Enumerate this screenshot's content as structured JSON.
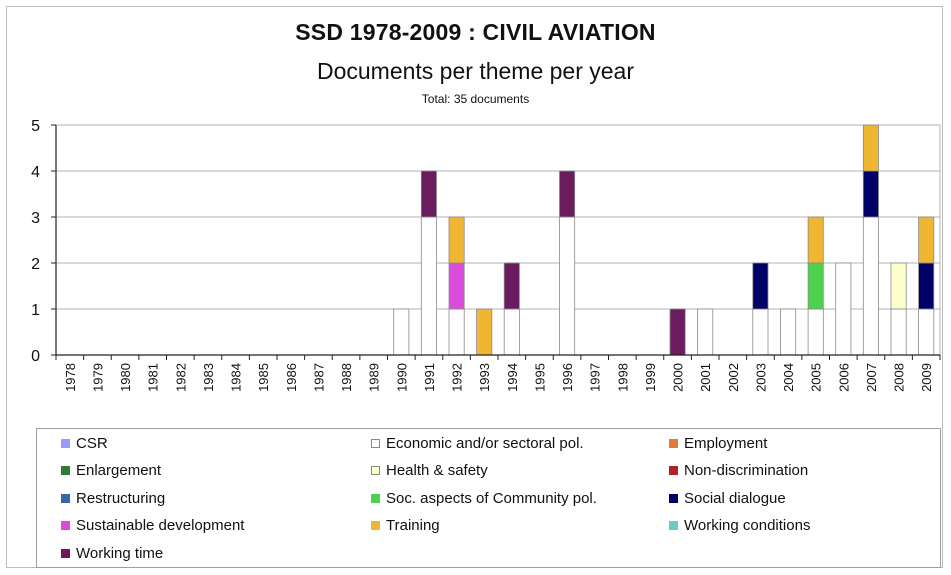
{
  "chart_data": {
    "type": "bar",
    "stacked": true,
    "title": "SSD 1978-2009 :  CIVIL AVIATION",
    "subtitle": "Documents per theme per year",
    "note": "Total: 35 documents",
    "xlabel": "",
    "ylabel": "",
    "ylim": [
      0,
      5
    ],
    "yticks": [
      "0",
      "1",
      "2",
      "3",
      "4",
      "5"
    ],
    "grid": true,
    "legend_position": "bottom",
    "categories": [
      "1978",
      "1979",
      "1980",
      "1981",
      "1982",
      "1983",
      "1984",
      "1985",
      "1986",
      "1987",
      "1988",
      "1989",
      "1990",
      "1991",
      "1992",
      "1993",
      "1994",
      "1995",
      "1996",
      "1997",
      "1998",
      "1999",
      "2000",
      "2001",
      "2002",
      "2003",
      "2004",
      "2005",
      "2006",
      "2007",
      "2008",
      "2009"
    ],
    "series": [
      {
        "name": "CSR",
        "color": "#9999ff",
        "values": [
          0,
          0,
          0,
          0,
          0,
          0,
          0,
          0,
          0,
          0,
          0,
          0,
          0,
          0,
          0,
          0,
          0,
          0,
          0,
          0,
          0,
          0,
          0,
          0,
          0,
          0,
          0,
          0,
          0,
          0,
          0,
          0
        ]
      },
      {
        "name": "Economic and/or sectoral pol.",
        "color": "#ffffff",
        "values": [
          0,
          0,
          0,
          0,
          0,
          0,
          0,
          0,
          0,
          0,
          0,
          0,
          1,
          3,
          1,
          0,
          1,
          0,
          3,
          0,
          0,
          0,
          0,
          1,
          0,
          1,
          1,
          1,
          2,
          3,
          1,
          1
        ]
      },
      {
        "name": "Employment",
        "color": "#e07b39",
        "values": [
          0,
          0,
          0,
          0,
          0,
          0,
          0,
          0,
          0,
          0,
          0,
          0,
          0,
          0,
          0,
          0,
          0,
          0,
          0,
          0,
          0,
          0,
          0,
          0,
          0,
          0,
          0,
          0,
          0,
          0,
          0,
          0
        ]
      },
      {
        "name": "Enlargement",
        "color": "#2e7d32",
        "values": [
          0,
          0,
          0,
          0,
          0,
          0,
          0,
          0,
          0,
          0,
          0,
          0,
          0,
          0,
          0,
          0,
          0,
          0,
          0,
          0,
          0,
          0,
          0,
          0,
          0,
          0,
          0,
          0,
          0,
          0,
          0,
          0
        ]
      },
      {
        "name": "Health & safety",
        "color": "#ffffcc",
        "values": [
          0,
          0,
          0,
          0,
          0,
          0,
          0,
          0,
          0,
          0,
          0,
          0,
          0,
          0,
          0,
          0,
          0,
          0,
          0,
          0,
          0,
          0,
          0,
          0,
          0,
          0,
          0,
          0,
          0,
          0,
          1,
          0
        ]
      },
      {
        "name": "Non-discrimination",
        "color": "#b22222",
        "values": [
          0,
          0,
          0,
          0,
          0,
          0,
          0,
          0,
          0,
          0,
          0,
          0,
          0,
          0,
          0,
          0,
          0,
          0,
          0,
          0,
          0,
          0,
          0,
          0,
          0,
          0,
          0,
          0,
          0,
          0,
          0,
          0
        ]
      },
      {
        "name": "Restructuring",
        "color": "#3466a8",
        "values": [
          0,
          0,
          0,
          0,
          0,
          0,
          0,
          0,
          0,
          0,
          0,
          0,
          0,
          0,
          0,
          0,
          0,
          0,
          0,
          0,
          0,
          0,
          0,
          0,
          0,
          0,
          0,
          0,
          0,
          0,
          0,
          0
        ]
      },
      {
        "name": "Soc. aspects of Community pol.",
        "color": "#4cd24c",
        "values": [
          0,
          0,
          0,
          0,
          0,
          0,
          0,
          0,
          0,
          0,
          0,
          0,
          0,
          0,
          0,
          0,
          0,
          0,
          0,
          0,
          0,
          0,
          0,
          0,
          0,
          0,
          0,
          1,
          0,
          0,
          0,
          0
        ]
      },
      {
        "name": "Social dialogue",
        "color": "#000066",
        "values": [
          0,
          0,
          0,
          0,
          0,
          0,
          0,
          0,
          0,
          0,
          0,
          0,
          0,
          0,
          0,
          0,
          0,
          0,
          0,
          0,
          0,
          0,
          0,
          0,
          0,
          1,
          0,
          0,
          0,
          1,
          0,
          1
        ]
      },
      {
        "name": "Sustainable development",
        "color": "#d94cdb",
        "values": [
          0,
          0,
          0,
          0,
          0,
          0,
          0,
          0,
          0,
          0,
          0,
          0,
          0,
          0,
          1,
          0,
          0,
          0,
          0,
          0,
          0,
          0,
          0,
          0,
          0,
          0,
          0,
          0,
          0,
          0,
          0,
          0
        ]
      },
      {
        "name": "Training",
        "color": "#f0b632",
        "values": [
          0,
          0,
          0,
          0,
          0,
          0,
          0,
          0,
          0,
          0,
          0,
          0,
          0,
          0,
          1,
          1,
          0,
          0,
          0,
          0,
          0,
          0,
          0,
          0,
          0,
          0,
          0,
          1,
          0,
          1,
          0,
          1
        ]
      },
      {
        "name": "Working conditions",
        "color": "#66cccc",
        "values": [
          0,
          0,
          0,
          0,
          0,
          0,
          0,
          0,
          0,
          0,
          0,
          0,
          0,
          0,
          0,
          0,
          0,
          0,
          0,
          0,
          0,
          0,
          0,
          0,
          0,
          0,
          0,
          0,
          0,
          0,
          0,
          0
        ]
      },
      {
        "name": "Working time",
        "color": "#6b1c5e",
        "values": [
          0,
          0,
          0,
          0,
          0,
          0,
          0,
          0,
          0,
          0,
          0,
          0,
          0,
          1,
          0,
          0,
          1,
          0,
          1,
          0,
          0,
          0,
          1,
          0,
          0,
          0,
          0,
          0,
          0,
          0,
          0,
          0
        ]
      }
    ]
  }
}
